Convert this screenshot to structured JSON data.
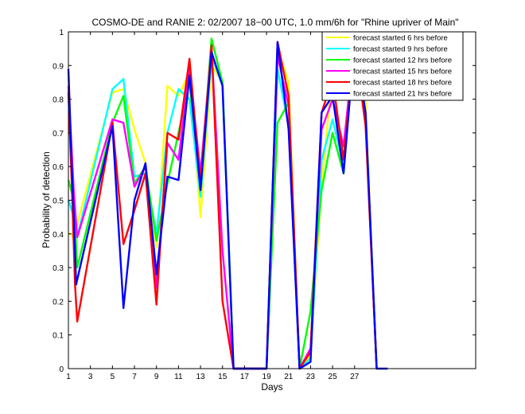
{
  "chart_data": {
    "type": "line",
    "title": "COSMO-DE and RANIE 2: 02/2007 18−00 UTC, 1.0 mm/6h for \"Rhine upriver of Main\"",
    "xlabel": "Days",
    "ylabel": "Probability of detection",
    "xlim": [
      1,
      38
    ],
    "ylim": [
      0,
      1
    ],
    "xticks": [
      1,
      3,
      5,
      7,
      9,
      11,
      13,
      15,
      17,
      19,
      21,
      23,
      25,
      27
    ],
    "xtick_labels": [
      "1",
      "3",
      "5",
      "7",
      "9",
      "11",
      "13",
      "15",
      "17",
      "19",
      "21",
      "23",
      "25",
      "27"
    ],
    "yticks": [
      0,
      0.1,
      0.2,
      0.3,
      0.4,
      0.5,
      0.6,
      0.7,
      0.8,
      0.9,
      1
    ],
    "ytick_labels": [
      "0",
      "0.1",
      "0.2",
      "0.3",
      "0.4",
      "0.5",
      "0.6",
      "0.7",
      "0.8",
      "0.9",
      "1"
    ],
    "grid": false,
    "legend_position": "top-right",
    "series": [
      {
        "name": "forecast started 6 hrs before",
        "color": "#ffff00",
        "points": [
          [
            1,
            0.4
          ],
          [
            1.3,
            0.4
          ],
          [
            1.5,
            0.38
          ],
          [
            1.8,
            0.43
          ],
          [
            5,
            0.82
          ],
          [
            6,
            0.83
          ],
          [
            7,
            0.71
          ],
          [
            8,
            0.61
          ],
          [
            9,
            0.36
          ],
          [
            10,
            0.84
          ],
          [
            11,
            0.81
          ],
          [
            12,
            0.88
          ],
          [
            13,
            0.45
          ],
          [
            14,
            0.9
          ],
          [
            15,
            0.85
          ],
          [
            16,
            0
          ],
          [
            17,
            0
          ],
          [
            18,
            0
          ],
          [
            19,
            0
          ],
          [
            20,
            0.95
          ],
          [
            21,
            0.85
          ],
          [
            22,
            0
          ],
          [
            23,
            0.04
          ],
          [
            24,
            0.55
          ],
          [
            25,
            0.88
          ],
          [
            26,
            0.58
          ],
          [
            27,
            0.99
          ],
          [
            28,
            0.79
          ],
          [
            29,
            0
          ]
        ]
      },
      {
        "name": "forecast started 9 hrs before",
        "color": "#00ffff",
        "points": [
          [
            1,
            0.5
          ],
          [
            1.5,
            0.45
          ],
          [
            1.8,
            0.39
          ],
          [
            5,
            0.83
          ],
          [
            6,
            0.86
          ],
          [
            7,
            0.57
          ],
          [
            8,
            0.58
          ],
          [
            9,
            0.4
          ],
          [
            10,
            0.7
          ],
          [
            11,
            0.83
          ],
          [
            12,
            0.8
          ],
          [
            13,
            0.51
          ],
          [
            14,
            0.93
          ],
          [
            15,
            0.84
          ],
          [
            16,
            0
          ],
          [
            17,
            0
          ],
          [
            18,
            0
          ],
          [
            19,
            0
          ],
          [
            20,
            0.89
          ],
          [
            21,
            0.72
          ],
          [
            22,
            0
          ],
          [
            23,
            0.03
          ],
          [
            24,
            0.62
          ],
          [
            25,
            0.74
          ],
          [
            26,
            0.6
          ],
          [
            27,
            0.98
          ],
          [
            28,
            0.75
          ],
          [
            29,
            0
          ]
        ]
      },
      {
        "name": "forecast started 12 hrs before",
        "color": "#00ff00",
        "points": [
          [
            1,
            0.56
          ],
          [
            1.5,
            0.5
          ],
          [
            1.8,
            0.3
          ],
          [
            5,
            0.73
          ],
          [
            6,
            0.81
          ],
          [
            7,
            0.55
          ],
          [
            8,
            0.6
          ],
          [
            9,
            0.38
          ],
          [
            10,
            0.55
          ],
          [
            11,
            0.7
          ],
          [
            12,
            0.85
          ],
          [
            13,
            0.55
          ],
          [
            14,
            0.98
          ],
          [
            15,
            0.85
          ],
          [
            16,
            0
          ],
          [
            17,
            0
          ],
          [
            18,
            0
          ],
          [
            19,
            0
          ],
          [
            20,
            0.73
          ],
          [
            21,
            0.79
          ],
          [
            22,
            0
          ],
          [
            23,
            0.17
          ],
          [
            24,
            0.53
          ],
          [
            25,
            0.7
          ],
          [
            26,
            0.58
          ],
          [
            27,
            0.97
          ],
          [
            28,
            0.75
          ],
          [
            29,
            0
          ]
        ]
      },
      {
        "name": "forecast started 15 hrs before",
        "color": "#ff00ff",
        "points": [
          [
            1,
            0.84
          ],
          [
            1.5,
            0.52
          ],
          [
            1.8,
            0.39
          ],
          [
            5,
            0.74
          ],
          [
            6,
            0.73
          ],
          [
            7,
            0.54
          ],
          [
            8,
            0.6
          ],
          [
            9,
            0.24
          ],
          [
            10,
            0.67
          ],
          [
            11,
            0.62
          ],
          [
            12,
            0.89
          ],
          [
            13,
            0.58
          ],
          [
            14,
            0.95
          ],
          [
            15,
            0.35
          ],
          [
            16,
            0
          ],
          [
            17,
            0
          ],
          [
            18,
            0
          ],
          [
            19,
            0
          ],
          [
            20,
            0.93
          ],
          [
            21,
            0.78
          ],
          [
            22,
            0
          ],
          [
            23,
            0.06
          ],
          [
            24,
            0.71
          ],
          [
            25,
            0.8
          ],
          [
            26,
            0.66
          ],
          [
            27,
            0.97
          ],
          [
            28,
            0.74
          ],
          [
            29,
            0
          ]
        ]
      },
      {
        "name": "forecast started 18 hrs before",
        "color": "#ff0000",
        "points": [
          [
            1,
            0.82
          ],
          [
            1.3,
            0.55
          ],
          [
            1.6,
            0.25
          ],
          [
            1.8,
            0.14
          ],
          [
            5,
            0.73
          ],
          [
            6,
            0.37
          ],
          [
            7,
            0.47
          ],
          [
            8,
            0.58
          ],
          [
            9,
            0.19
          ],
          [
            10,
            0.7
          ],
          [
            11,
            0.68
          ],
          [
            12,
            0.92
          ],
          [
            13,
            0.55
          ],
          [
            14,
            0.96
          ],
          [
            15,
            0.2
          ],
          [
            16,
            0
          ],
          [
            17,
            0
          ],
          [
            18,
            0
          ],
          [
            19,
            0
          ],
          [
            20,
            0.97
          ],
          [
            21,
            0.81
          ],
          [
            22,
            0
          ],
          [
            23,
            0.05
          ],
          [
            24,
            0.76
          ],
          [
            25,
            0.86
          ],
          [
            26,
            0.62
          ],
          [
            27,
            0.97
          ],
          [
            28,
            0.72
          ],
          [
            29,
            0
          ]
        ]
      },
      {
        "name": "forecast started 21 hrs before",
        "color": "#0000ff",
        "points": [
          [
            1,
            0.89
          ],
          [
            1.3,
            0.6
          ],
          [
            1.5,
            0.45
          ],
          [
            1.7,
            0.25
          ],
          [
            5,
            0.72
          ],
          [
            6,
            0.18
          ],
          [
            7,
            0.5
          ],
          [
            8,
            0.61
          ],
          [
            9,
            0.28
          ],
          [
            10,
            0.57
          ],
          [
            11,
            0.56
          ],
          [
            12,
            0.87
          ],
          [
            13,
            0.53
          ],
          [
            14,
            0.94
          ],
          [
            15,
            0.84
          ],
          [
            16,
            0
          ],
          [
            17,
            0
          ],
          [
            18,
            0
          ],
          [
            19,
            0
          ],
          [
            20,
            0.97
          ],
          [
            21,
            0.71
          ],
          [
            22,
            0
          ],
          [
            23,
            0.02
          ],
          [
            24,
            0.76
          ],
          [
            25,
            0.81
          ],
          [
            26,
            0.58
          ],
          [
            27,
            0.97
          ],
          [
            28,
            0.76
          ],
          [
            29,
            0
          ],
          [
            30,
            0
          ]
        ]
      }
    ]
  }
}
